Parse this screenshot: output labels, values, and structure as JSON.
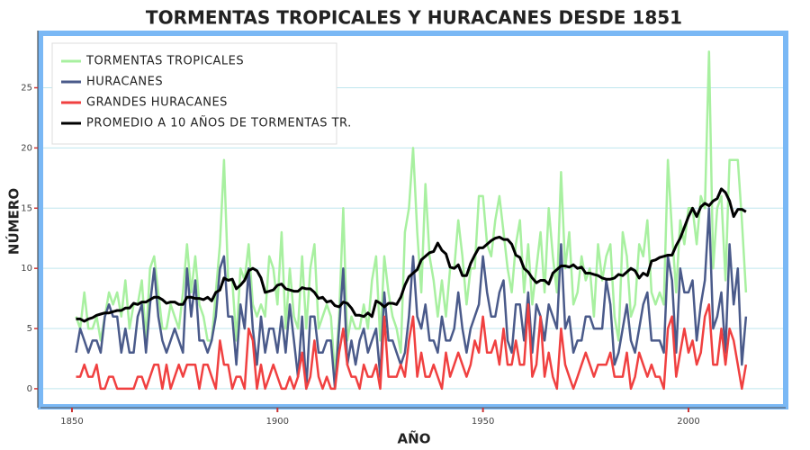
{
  "chart_data": {
    "type": "line",
    "title": "TORMENTAS TROPICALES Y HURACANES DESDE 1851",
    "xlabel": "AÑO",
    "ylabel": "NÚMERO",
    "xlim": [
      1843,
      2023
    ],
    "ylim": [
      -1.5,
      29.3
    ],
    "xticks": [
      1850,
      1900,
      1950,
      2000
    ],
    "yticks": [
      0,
      5,
      10,
      15,
      20,
      25
    ],
    "grid": true,
    "legend": "upper left",
    "x": [
      1851,
      1852,
      1853,
      1854,
      1855,
      1856,
      1857,
      1858,
      1859,
      1860,
      1861,
      1862,
      1863,
      1864,
      1865,
      1866,
      1867,
      1868,
      1869,
      1870,
      1871,
      1872,
      1873,
      1874,
      1875,
      1876,
      1877,
      1878,
      1879,
      1880,
      1881,
      1882,
      1883,
      1884,
      1885,
      1886,
      1887,
      1888,
      1889,
      1890,
      1891,
      1892,
      1893,
      1894,
      1895,
      1896,
      1897,
      1898,
      1899,
      1900,
      1901,
      1902,
      1903,
      1904,
      1905,
      1906,
      1907,
      1908,
      1909,
      1910,
      1911,
      1912,
      1913,
      1914,
      1915,
      1916,
      1917,
      1918,
      1919,
      1920,
      1921,
      1922,
      1923,
      1924,
      1925,
      1926,
      1927,
      1928,
      1929,
      1930,
      1931,
      1932,
      1933,
      1934,
      1935,
      1936,
      1937,
      1938,
      1939,
      1940,
      1941,
      1942,
      1943,
      1944,
      1945,
      1946,
      1947,
      1948,
      1949,
      1950,
      1951,
      1952,
      1953,
      1954,
      1955,
      1956,
      1957,
      1958,
      1959,
      1960,
      1961,
      1962,
      1963,
      1964,
      1965,
      1966,
      1967,
      1968,
      1969,
      1970,
      1971,
      1972,
      1973,
      1974,
      1975,
      1976,
      1977,
      1978,
      1979,
      1980,
      1981,
      1982,
      1983,
      1984,
      1985,
      1986,
      1987,
      1988,
      1989,
      1990,
      1991,
      1992,
      1993,
      1994,
      1995,
      1996,
      1997,
      1998,
      1999,
      2000,
      2001,
      2002,
      2003,
      2004,
      2005,
      2006,
      2007,
      2008,
      2009,
      2010,
      2011,
      2012,
      2013,
      2014
    ],
    "series": [
      {
        "name": "TORMENTAS TROPICALES",
        "color": "#a8f0a0",
        "values": [
          6,
          5,
          8,
          5,
          5,
          6,
          4,
          6,
          8,
          7,
          8,
          6,
          9,
          5,
          7,
          7,
          9,
          4,
          10,
          11,
          8,
          5,
          5,
          7,
          6,
          5,
          8,
          12,
          8,
          11,
          7,
          6,
          4,
          4,
          8,
          12,
          19,
          9,
          9,
          4,
          10,
          9,
          12,
          7,
          6,
          7,
          6,
          11,
          10,
          7,
          13,
          5,
          10,
          6,
          5,
          11,
          5,
          10,
          12,
          5,
          6,
          7,
          6,
          1,
          6,
          15,
          4,
          6,
          5,
          5,
          7,
          5,
          9,
          11,
          4,
          11,
          8,
          6,
          5,
          3,
          13,
          15,
          20,
          13,
          8,
          17,
          11,
          9,
          6,
          9,
          6,
          10,
          10,
          14,
          11,
          7,
          10,
          10,
          16,
          16,
          12,
          11,
          14,
          16,
          13,
          10,
          8,
          12,
          14,
          8,
          12,
          7,
          10,
          13,
          8,
          15,
          11,
          8,
          18,
          10,
          13,
          7,
          8,
          11,
          9,
          10,
          6,
          12,
          9,
          11,
          12,
          6,
          4,
          13,
          11,
          6,
          7,
          12,
          11,
          14,
          8,
          7,
          8,
          7,
          19,
          13,
          8,
          14,
          12,
          15,
          15,
          12,
          16,
          15,
          28,
          10,
          15,
          16,
          9,
          19,
          19,
          19,
          14,
          8
        ]
      },
      {
        "name": "HURACANES",
        "color": "#4a5a8a",
        "values": [
          3,
          5,
          4,
          3,
          4,
          4,
          3,
          6,
          7,
          6,
          6,
          3,
          5,
          3,
          3,
          6,
          7,
          3,
          7,
          10,
          6,
          4,
          3,
          4,
          5,
          4,
          3,
          10,
          6,
          9,
          4,
          4,
          3,
          4,
          6,
          10,
          11,
          6,
          6,
          2,
          7,
          5,
          10,
          5,
          2,
          6,
          3,
          5,
          5,
          3,
          6,
          3,
          7,
          4,
          1,
          6,
          0,
          6,
          6,
          3,
          3,
          4,
          4,
          0,
          5,
          10,
          2,
          4,
          2,
          4,
          5,
          3,
          4,
          5,
          1,
          8,
          4,
          4,
          3,
          2,
          3,
          6,
          11,
          6,
          5,
          7,
          4,
          4,
          3,
          6,
          4,
          4,
          5,
          8,
          5,
          3,
          5,
          6,
          7,
          11,
          8,
          6,
          6,
          8,
          9,
          4,
          3,
          7,
          7,
          4,
          8,
          3,
          7,
          6,
          4,
          7,
          6,
          5,
          12,
          5,
          6,
          3,
          4,
          4,
          6,
          6,
          5,
          5,
          5,
          9,
          7,
          2,
          3,
          5,
          7,
          4,
          3,
          5,
          7,
          8,
          4,
          4,
          4,
          3,
          11,
          9,
          3,
          10,
          8,
          8,
          9,
          4,
          7,
          9,
          15,
          5,
          6,
          8,
          3,
          12,
          7,
          10,
          2,
          6
        ]
      },
      {
        "name": "GRANDES HURACANES",
        "color": "#f04040",
        "values": [
          1,
          1,
          2,
          1,
          1,
          2,
          0,
          0,
          1,
          1,
          0,
          0,
          0,
          0,
          0,
          1,
          1,
          0,
          1,
          2,
          2,
          0,
          2,
          0,
          1,
          2,
          1,
          2,
          2,
          2,
          0,
          2,
          2,
          1,
          0,
          4,
          2,
          2,
          0,
          1,
          1,
          0,
          5,
          4,
          0,
          2,
          0,
          1,
          2,
          1,
          0,
          0,
          1,
          0,
          1,
          3,
          0,
          1,
          4,
          1,
          0,
          1,
          0,
          0,
          3,
          5,
          2,
          1,
          1,
          0,
          2,
          1,
          1,
          2,
          0,
          6,
          1,
          1,
          1,
          2,
          1,
          4,
          6,
          1,
          3,
          1,
          1,
          2,
          1,
          0,
          3,
          1,
          2,
          3,
          2,
          1,
          2,
          4,
          3,
          6,
          3,
          3,
          4,
          2,
          5,
          2,
          2,
          4,
          2,
          2,
          7,
          1,
          2,
          6,
          1,
          3,
          1,
          0,
          5,
          2,
          1,
          0,
          1,
          2,
          3,
          2,
          1,
          2,
          2,
          2,
          3,
          1,
          1,
          1,
          3,
          0,
          1,
          3,
          2,
          1,
          2,
          1,
          1,
          0,
          5,
          6,
          1,
          3,
          5,
          3,
          4,
          2,
          3,
          6,
          7,
          2,
          2,
          5,
          2,
          5,
          4,
          2,
          0,
          2
        ]
      },
      {
        "name": "PROMEDIO A 10 AÑOS DE TORMENTAS TR.",
        "color": "#000000",
        "values": [
          5.8,
          5.8,
          5.6,
          5.8,
          5.9,
          6.1,
          6.2,
          6.3,
          6.3,
          6.4,
          6.5,
          6.5,
          6.7,
          6.7,
          7.1,
          7.0,
          7.2,
          7.2,
          7.4,
          7.6,
          7.6,
          7.4,
          7.1,
          7.2,
          7.2,
          7.0,
          7.0,
          7.6,
          7.6,
          7.5,
          7.5,
          7.4,
          7.6,
          7.3,
          8.0,
          8.2,
          9.2,
          9.0,
          9.1,
          8.3,
          8.6,
          9.0,
          9.8,
          10.0,
          9.8,
          9.2,
          8.0,
          8.1,
          8.2,
          8.6,
          8.7,
          8.3,
          8.2,
          8.1,
          8.1,
          8.4,
          8.3,
          8.3,
          8.0,
          7.5,
          7.6,
          7.2,
          7.3,
          6.9,
          6.8,
          7.2,
          7.1,
          6.7,
          6.1,
          6.1,
          6.0,
          6.3,
          6.0,
          7.3,
          7.1,
          6.8,
          7.1,
          7.1,
          7.0,
          7.6,
          8.6,
          9.3,
          9.6,
          9.9,
          10.7,
          11.0,
          11.3,
          11.4,
          12.1,
          11.5,
          11.2,
          10.1,
          10.0,
          10.3,
          9.4,
          9.4,
          10.4,
          11.1,
          11.7,
          11.7,
          12.0,
          12.3,
          12.5,
          12.6,
          12.4,
          12.4,
          12.0,
          11.1,
          10.9,
          10.0,
          9.7,
          9.2,
          8.8,
          9.0,
          9.0,
          8.7,
          9.6,
          9.9,
          10.2,
          10.2,
          10.1,
          10.3,
          10.0,
          10.1,
          9.6,
          9.6,
          9.5,
          9.4,
          9.2,
          9.1,
          9.1,
          9.2,
          9.5,
          9.4,
          9.7,
          10.0,
          9.8,
          9.2,
          9.6,
          9.4,
          10.6,
          10.7,
          10.9,
          11.0,
          11.1,
          11.1,
          11.9,
          12.5,
          13.4,
          14.3,
          15.0,
          14.3,
          15.1,
          15.4,
          15.2,
          15.6,
          15.8,
          16.6,
          16.3,
          15.6,
          14.3,
          14.9,
          14.9,
          14.7
        ]
      }
    ]
  }
}
